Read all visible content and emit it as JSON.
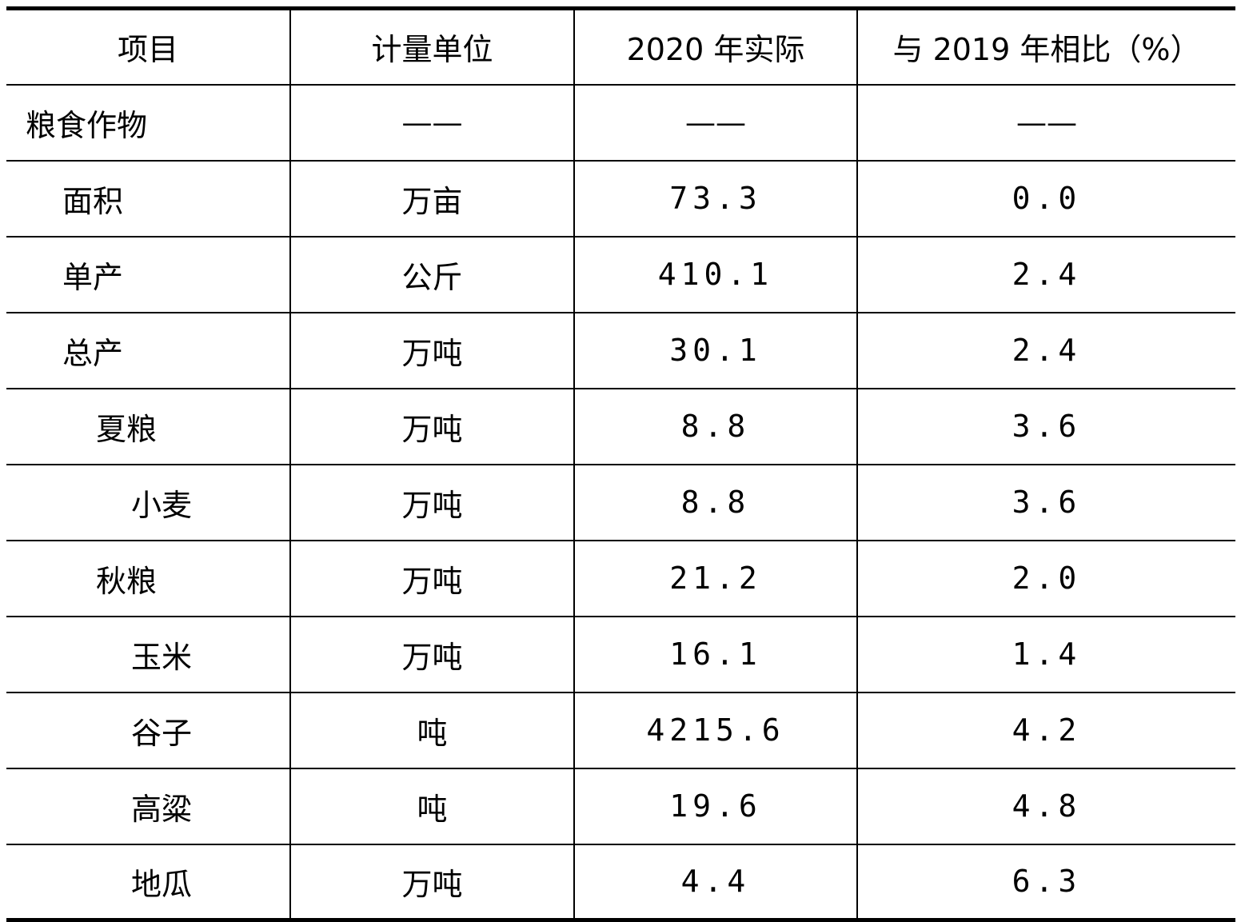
{
  "table": {
    "headers": [
      "项目",
      "计量单位",
      "2020 年实际",
      "与 2019 年相比（%）"
    ],
    "rows": [
      {
        "item": "粮食作物",
        "unit": "——",
        "value2020": "——",
        "change": "——",
        "level": 0
      },
      {
        "item": "面积",
        "unit": "万亩",
        "value2020": "73.3",
        "change": "0.0",
        "level": 1
      },
      {
        "item": "单产",
        "unit": "公斤",
        "value2020": "410.1",
        "change": "2.4",
        "level": 1
      },
      {
        "item": "总产",
        "unit": "万吨",
        "value2020": "30.1",
        "change": "2.4",
        "level": 1
      },
      {
        "item": "夏粮",
        "unit": "万吨",
        "value2020": "8.8",
        "change": "3.6",
        "level": 2
      },
      {
        "item": "小麦",
        "unit": "万吨",
        "value2020": "8.8",
        "change": "3.6",
        "level": 3
      },
      {
        "item": "秋粮",
        "unit": "万吨",
        "value2020": "21.2",
        "change": "2.0",
        "level": 2
      },
      {
        "item": "玉米",
        "unit": "万吨",
        "value2020": "16.1",
        "change": "1.4",
        "level": 3
      },
      {
        "item": "谷子",
        "unit": "吨",
        "value2020": "4215.6",
        "change": "4.2",
        "level": 3
      },
      {
        "item": "高粱",
        "unit": "吨",
        "value2020": "19.6",
        "change": "4.8",
        "level": 3
      },
      {
        "item": "地瓜",
        "unit": "万吨",
        "value2020": "4.4",
        "change": "6.3",
        "level": 3
      }
    ]
  }
}
